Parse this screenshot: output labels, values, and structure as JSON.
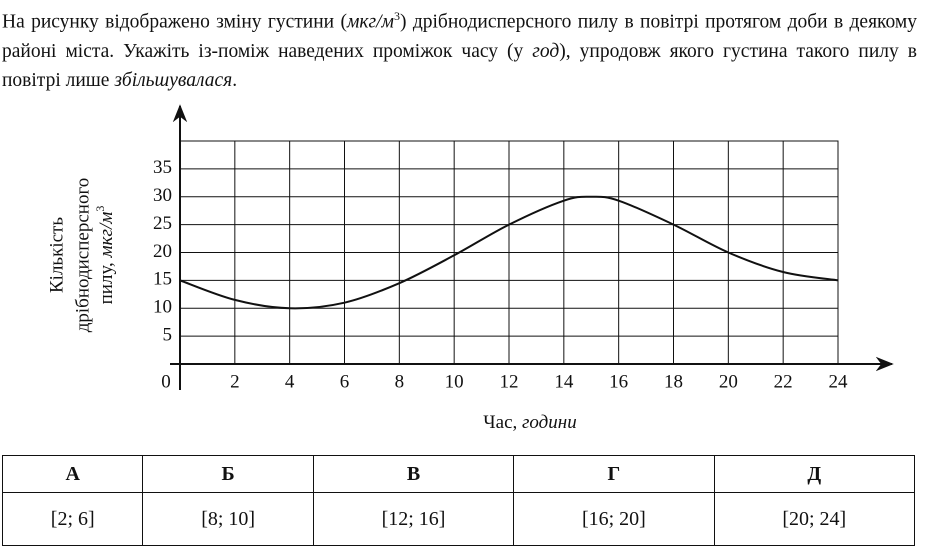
{
  "question": [
    "На рисунку відображено зміну густини (",
    "мкг/м",
    "3",
    ") дрібнодисперсного пилу в повітрі протягом доби в деякому районі міста. Укажіть із-поміж наведених проміжок часу (у ",
    "год",
    "), упродовж якого густина такого пилу в повітрі лише ",
    "збільшувалася",
    "."
  ],
  "chart_data": {
    "type": "line",
    "y_label": [
      "Кількість",
      "дрібнодисперсного",
      "пилу, ",
      "мкг/м",
      "3"
    ],
    "x_label": [
      "Час, ",
      "години"
    ],
    "x": [
      0,
      2,
      4,
      6,
      8,
      10,
      12,
      14,
      15,
      16,
      18,
      20,
      22,
      24
    ],
    "values": [
      15,
      11.5,
      10,
      11,
      14.5,
      19.5,
      25,
      29.3,
      30,
      29.3,
      25,
      20,
      16.5,
      15
    ],
    "color": "#111111",
    "xlim": [
      0,
      24
    ],
    "xticks": [
      0,
      2,
      4,
      6,
      8,
      10,
      12,
      14,
      16,
      18,
      20,
      22,
      24
    ],
    "ylim": [
      0,
      40
    ],
    "yticks": [
      5,
      10,
      15,
      20,
      25,
      30,
      35
    ],
    "grid": true
  },
  "table": {
    "header": [
      "А",
      "Б",
      "В",
      "Г",
      "Д"
    ],
    "rows": [
      [
        "[2; 6]",
        "[8; 10]",
        "[12; 16]",
        "[16; 20]",
        "[20; 24]"
      ]
    ]
  }
}
